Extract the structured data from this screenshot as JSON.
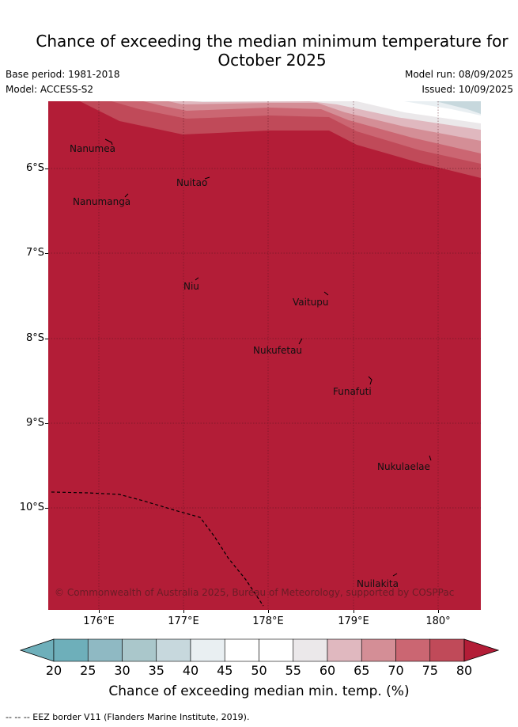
{
  "title": "Chance of exceeding the median minimum temperature for October 2025",
  "title_line1": "Chance of exceeding the median minimum temperature for",
  "title_line2": "October 2025",
  "meta": {
    "base_period": "Base period: 1981-2018",
    "model": "Model: ACCESS-S2",
    "model_run": "Model run: 08/09/2025",
    "issued": "Issued: 10/09/2025"
  },
  "map": {
    "lon_range": [
      175.5,
      180.5
    ],
    "lat_range": [
      -11.2,
      -5.2
    ],
    "lat_ticks": [
      "6°S",
      "7°S",
      "8°S",
      "9°S",
      "10°S"
    ],
    "lon_ticks": [
      "176°E",
      "177°E",
      "178°E",
      "179°E",
      "180°"
    ],
    "grid": true,
    "dominant_category": "80",
    "islands": [
      "Nanumea",
      "Nuitao",
      "Nanumanga",
      "Niu",
      "Vaitupu",
      "Nukufetau",
      "Funafuti",
      "Nukulaelae",
      "Nuilakita"
    ],
    "eez_border": "dashed",
    "copyright": "© Commonwealth of Australia 2025, Bureau of Meteorology, supported by COSPPac"
  },
  "colorbar": {
    "ticks": [
      "20",
      "25",
      "30",
      "35",
      "40",
      "45",
      "50",
      "55",
      "60",
      "65",
      "70",
      "75",
      "80"
    ],
    "colors": [
      "#6eafba",
      "#8fb9c3",
      "#aac7cb",
      "#c7d8dd",
      "#e9eff2",
      "#ffffff",
      "#ffffff",
      "#ebe8ea",
      "#e0b8bf",
      "#d48e96",
      "#cb6672",
      "#c04a59",
      "#b31d37"
    ],
    "under_color": "#6eafba",
    "over_color": "#b31d37",
    "label": "Chance of exceeding median min. temp. (%)"
  },
  "footnote": "--  --  -- EEZ border V11 (Flanders Marine Institute, 2019)."
}
